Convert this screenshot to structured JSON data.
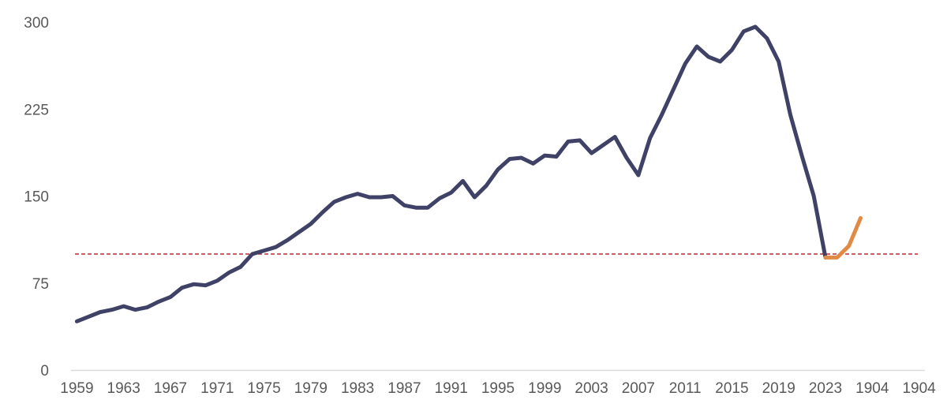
{
  "chart_data": {
    "type": "line",
    "title": "",
    "xlabel": "",
    "ylabel": "",
    "ylim": [
      0,
      300
    ],
    "yticks": [
      0,
      75,
      150,
      225,
      300
    ],
    "xtick_labels": [
      "1959",
      "1963",
      "1967",
      "1971",
      "1975",
      "1979",
      "1983",
      "1987",
      "1991",
      "1995",
      "1999",
      "2003",
      "2007",
      "2011",
      "2015",
      "2019",
      "2023",
      "1904",
      "1904"
    ],
    "grid": false,
    "legend": "none",
    "reference_line": {
      "y": 100,
      "style": "dashed",
      "color": "#c0282f"
    },
    "series": [
      {
        "color": "#3f4266",
        "x": [
          1959,
          1960,
          1961,
          1962,
          1963,
          1964,
          1965,
          1966,
          1967,
          1968,
          1969,
          1970,
          1971,
          1972,
          1973,
          1974,
          1975,
          1976,
          1977,
          1978,
          1979,
          1980,
          1981,
          1982,
          1983,
          1984,
          1985,
          1986,
          1987,
          1988,
          1989,
          1990,
          1991,
          1992,
          1993,
          1994,
          1995,
          1996,
          1997,
          1998,
          1999,
          2000,
          2001,
          2002,
          2003,
          2004,
          2005,
          2006,
          2007,
          2008,
          2009,
          2010,
          2011,
          2012,
          2013,
          2014,
          2015,
          2016,
          2017,
          2018,
          2019,
          2020,
          2021,
          2022,
          2023
        ],
        "y": [
          42,
          46,
          50,
          52,
          55,
          52,
          54,
          59,
          63,
          71,
          74,
          73,
          77,
          84,
          89,
          100,
          103,
          106,
          112,
          119,
          126,
          136,
          145,
          149,
          152,
          149,
          149,
          150,
          142,
          140,
          140,
          148,
          153,
          163,
          149,
          159,
          173,
          182,
          183,
          178,
          185,
          184,
          197,
          198,
          187,
          194,
          201,
          183,
          168,
          200,
          220,
          242,
          264,
          279,
          270,
          266,
          276,
          292,
          296,
          286,
          266,
          220,
          184,
          150,
          97
        ]
      },
      {
        "color": "#e08a46",
        "x": [
          2023,
          2024,
          2025,
          2026
        ],
        "y": [
          97,
          97,
          107,
          131
        ]
      }
    ]
  }
}
